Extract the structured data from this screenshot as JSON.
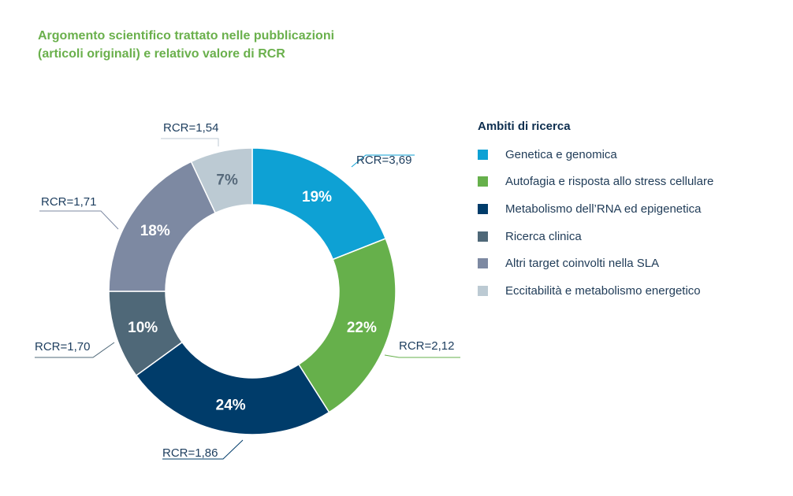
{
  "chart_data": {
    "type": "pie",
    "title": "Argomento scientifico trattato nelle pubblicazioni (articoli originali) e relativo valore di RCR",
    "title_lines": [
      "Argomento scientifico trattato nelle pubblicazioni",
      "(articoli originali) e relativo valore di RCR"
    ],
    "donut": true,
    "legend_title": "Ambiti di ricerca",
    "legend_placement": "right",
    "slices": [
      {
        "label": "Genetica e genomica",
        "value": 19,
        "value_label": "19%",
        "rcr": "RCR=3,69",
        "color": "#0ea1d4",
        "text_color": "#ffffff"
      },
      {
        "label": "Autofagia e risposta allo stress cellulare",
        "value": 22,
        "value_label": "22%",
        "rcr": "RCR=2,12",
        "color": "#66b04b",
        "text_color": "#ffffff"
      },
      {
        "label": "Metabolismo dell’RNA ed epigenetica",
        "value": 24,
        "value_label": "24%",
        "rcr": "RCR=1,86",
        "color": "#003c6a",
        "text_color": "#ffffff"
      },
      {
        "label": "Ricerca clinica",
        "value": 10,
        "value_label": "10%",
        "rcr": "RCR=1,70",
        "color": "#4f6878",
        "text_color": "#ffffff"
      },
      {
        "label": "Altri target coinvolti nella SLA",
        "value": 18,
        "value_label": "18%",
        "rcr": "RCR=1,71",
        "color": "#7d89a2",
        "text_color": "#ffffff"
      },
      {
        "label": "Eccitabilità e metabolismo energetico",
        "value": 7,
        "value_label": "7%",
        "rcr": "RCR=1,54",
        "color": "#bccad3",
        "text_color": "#56697a"
      }
    ]
  }
}
